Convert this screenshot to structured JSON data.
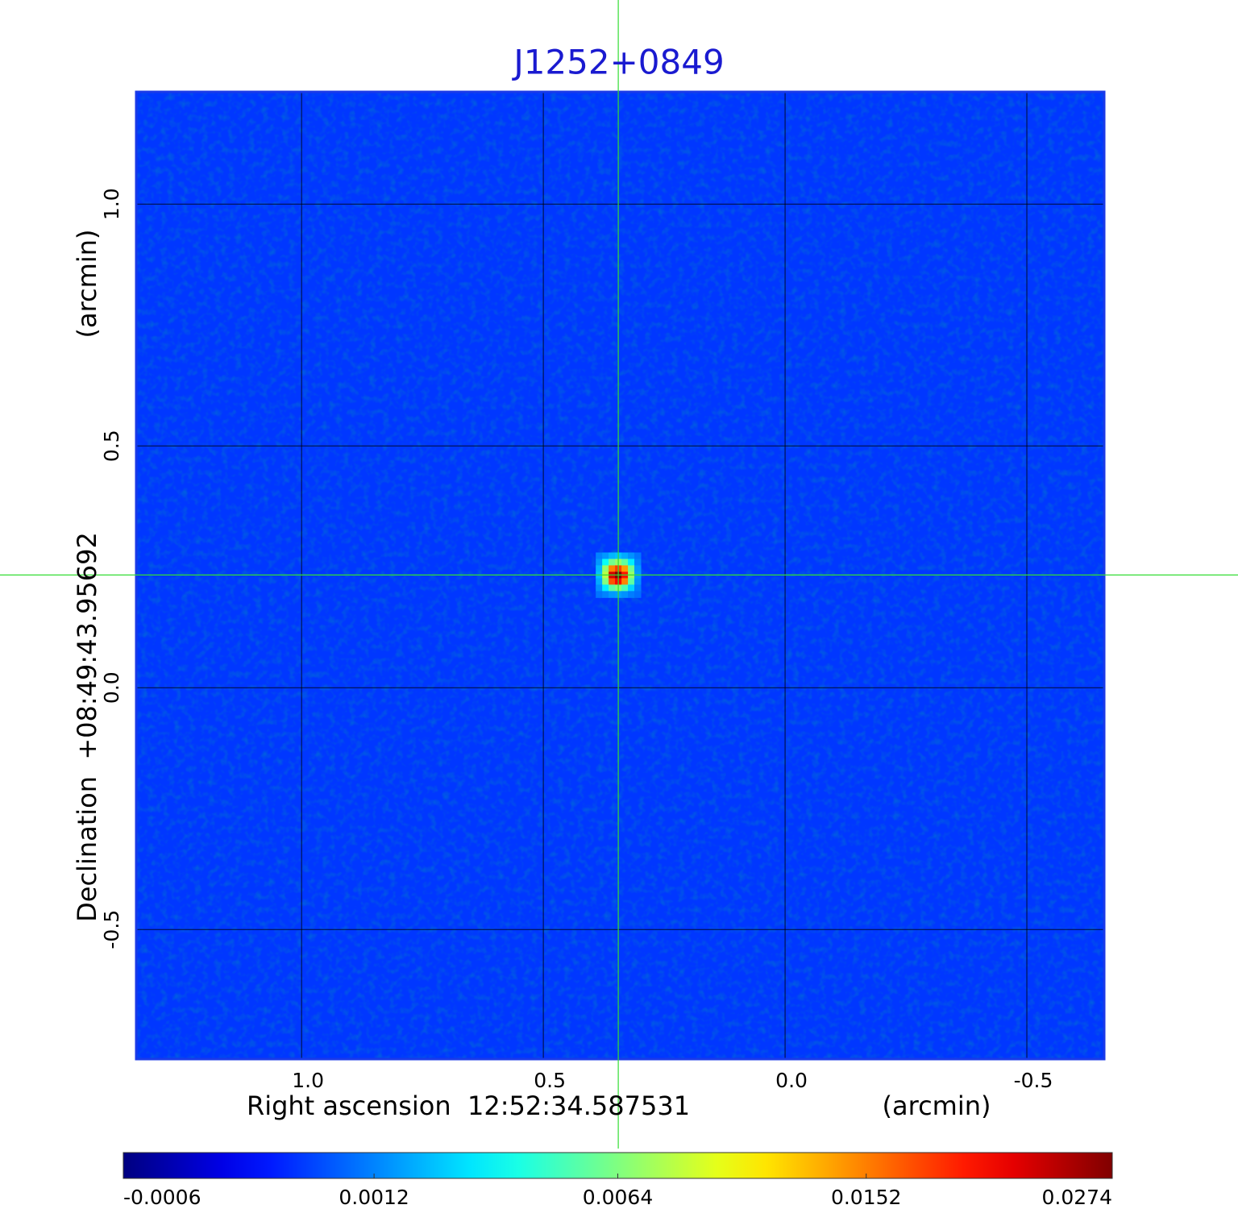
{
  "chart_data": {
    "type": "image",
    "title": "J1252+0849",
    "xlabel": "Right ascension  12:52:34.587531",
    "xlabel_unit": "(arcmin)",
    "ylabel": "Declination  +08:49:43.95692",
    "ylabel_unit": "(arcmin)",
    "xlim": [
      1.342,
      -0.66
    ],
    "ylim": [
      -0.768,
      1.232
    ],
    "xticks": [
      {
        "value": 1,
        "label": "1.0"
      },
      0.5,
      {
        "value": 0,
        "label": "0.0"
      },
      -0.5
    ],
    "yticks": [
      {
        "value": 1,
        "label": "1.0"
      },
      0.5,
      {
        "value": 0,
        "label": "0.0"
      },
      -0.5
    ],
    "grid": true,
    "colormap": "jet",
    "color_scale": "sqrt",
    "clim": [
      -0.0006,
      0.0274
    ],
    "cticks": [
      -0.0006,
      0.0012,
      0.0064,
      0.0152,
      0.0274
    ],
    "background": 0.0003,
    "source": {
      "x": 0.345,
      "y": 0.233,
      "pixel": 0.0133,
      "values": [
        [
          0.0012,
          0.0015,
          0.002,
          0.0022,
          0.0018,
          0.0014,
          0.001
        ],
        [
          0.0015,
          0.0035,
          0.006,
          0.007,
          0.0055,
          0.003,
          0.0012
        ],
        [
          0.002,
          0.007,
          0.015,
          0.018,
          0.014,
          0.006,
          0.0015
        ],
        [
          0.0022,
          0.008,
          0.023,
          0.0274,
          0.02,
          0.007,
          0.0016
        ],
        [
          0.0018,
          0.0065,
          0.017,
          0.021,
          0.015,
          0.0055,
          0.0014
        ],
        [
          0.0014,
          0.003,
          0.0055,
          0.0065,
          0.005,
          0.0025,
          0.0011
        ],
        [
          0.001,
          0.0012,
          0.0015,
          0.0016,
          0.0014,
          0.0011,
          0.0009
        ]
      ]
    },
    "crosshair": {
      "x": 0.345,
      "y": 0.233,
      "color": "#33dd33"
    }
  }
}
